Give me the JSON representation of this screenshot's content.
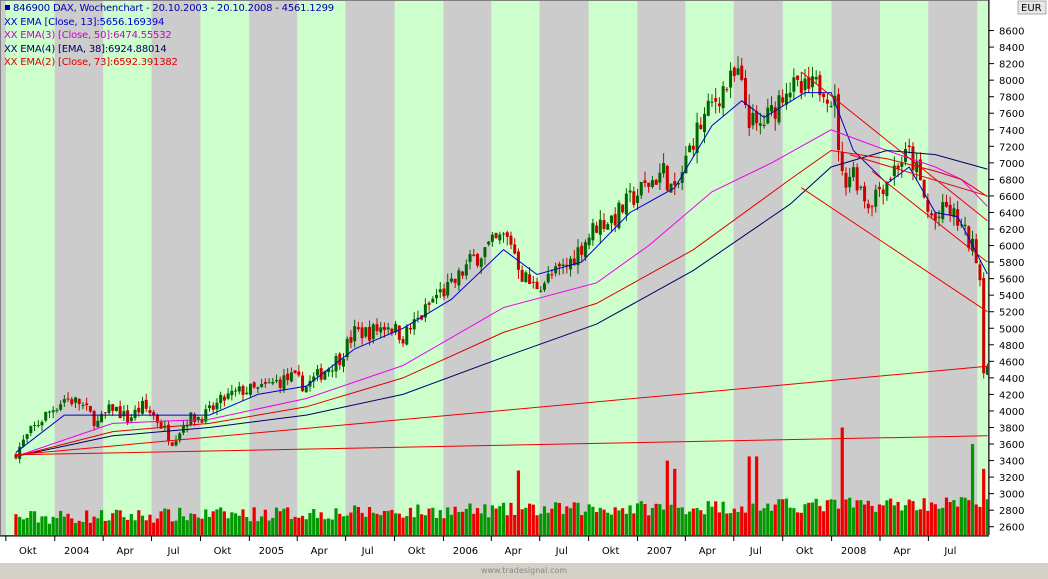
{
  "header": {
    "symbol_title": "846900  DAX, Wochenchart - 20.10.2003 - 20.10.2008 - 4561.1299",
    "currency": "EUR"
  },
  "indicators": [
    {
      "label": "XX EMA [Close, 13]:5656.169394",
      "color": "#0000cc"
    },
    {
      "label": "XX EMA(3) [Close, 50]:6474.55532",
      "color": "#cc00cc"
    },
    {
      "label": "XX EMA(4) [EMA, 38]:6924.88014",
      "color": "#000066"
    },
    {
      "label": "XX EMA(2) [Close, 73]:6592.391382",
      "color": "#dd0000"
    }
  ],
  "footer": "www.tradesignal.com",
  "colors": {
    "band_green": "#ccffcc",
    "band_gray": "#cccccc",
    "up": "#006600",
    "down": "#cc0000",
    "ema13": "#0000cc",
    "ema50": "#ee00ee",
    "ema_ema38": "#000066",
    "ema73": "#dd0000",
    "trendline": "#ee0000",
    "volume_up": "#009900",
    "volume_down": "#ee0000"
  },
  "chart_data": {
    "type": "candlestick",
    "title": "846900  DAX, Wochenchart - 20.10.2003 - 20.10.2008 - 4561.1299",
    "xlabel": "",
    "ylabel": "EUR",
    "xlim": [
      "2003-10-20",
      "2008-10-20"
    ],
    "ylim": [
      2500,
      8800
    ],
    "y_ticks": [
      2600,
      2800,
      3000,
      3200,
      3400,
      3600,
      3800,
      4000,
      4200,
      4400,
      4600,
      4800,
      5000,
      5200,
      5400,
      5600,
      5800,
      6000,
      6200,
      6400,
      6600,
      6800,
      7000,
      7200,
      7400,
      7600,
      7800,
      8000,
      8200,
      8400,
      8600
    ],
    "x_ticks": [
      {
        "date": "2003-10-01",
        "label": "Okt"
      },
      {
        "date": "2004-01-01",
        "label": "2004"
      },
      {
        "date": "2004-04-01",
        "label": "Apr"
      },
      {
        "date": "2004-07-01",
        "label": "Jul"
      },
      {
        "date": "2004-10-01",
        "label": "Okt"
      },
      {
        "date": "2005-01-01",
        "label": "2005"
      },
      {
        "date": "2005-04-01",
        "label": "Apr"
      },
      {
        "date": "2005-07-01",
        "label": "Jul"
      },
      {
        "date": "2005-10-01",
        "label": "Okt"
      },
      {
        "date": "2006-01-01",
        "label": "2006"
      },
      {
        "date": "2006-04-01",
        "label": "Apr"
      },
      {
        "date": "2006-07-01",
        "label": "Jul"
      },
      {
        "date": "2006-10-01",
        "label": "Okt"
      },
      {
        "date": "2007-01-01",
        "label": "2007"
      },
      {
        "date": "2007-04-01",
        "label": "Apr"
      },
      {
        "date": "2007-07-01",
        "label": "Jul"
      },
      {
        "date": "2007-10-01",
        "label": "Okt"
      },
      {
        "date": "2008-01-01",
        "label": "2008"
      },
      {
        "date": "2008-04-01",
        "label": "Apr"
      },
      {
        "date": "2008-07-01",
        "label": "Jul"
      }
    ],
    "close_path": [
      [
        "2003-10-20",
        3500
      ],
      [
        "2003-11-17",
        3750
      ],
      [
        "2003-12-15",
        3950
      ],
      [
        "2004-01-19",
        4150
      ],
      [
        "2004-02-16",
        4100
      ],
      [
        "2004-03-22",
        3850
      ],
      [
        "2004-04-19",
        4050
      ],
      [
        "2004-05-17",
        3900
      ],
      [
        "2004-06-14",
        4050
      ],
      [
        "2004-07-05",
        3950
      ],
      [
        "2004-08-09",
        3650
      ],
      [
        "2004-09-06",
        3900
      ],
      [
        "2004-10-11",
        3950
      ],
      [
        "2004-11-15",
        4150
      ],
      [
        "2004-12-20",
        4250
      ],
      [
        "2005-01-17",
        4250
      ],
      [
        "2005-02-21",
        4350
      ],
      [
        "2005-03-21",
        4400
      ],
      [
        "2005-04-18",
        4300
      ],
      [
        "2005-05-23",
        4500
      ],
      [
        "2005-06-20",
        4650
      ],
      [
        "2005-07-18",
        4950
      ],
      [
        "2005-08-15",
        4950
      ],
      [
        "2005-09-19",
        5050
      ],
      [
        "2005-10-17",
        4900
      ],
      [
        "2005-11-21",
        5150
      ],
      [
        "2005-12-19",
        5400
      ],
      [
        "2006-01-16",
        5500
      ],
      [
        "2006-02-20",
        5800
      ],
      [
        "2006-03-20",
        5950
      ],
      [
        "2006-04-24",
        6100
      ],
      [
        "2006-05-08",
        6050
      ],
      [
        "2006-05-29",
        5650
      ],
      [
        "2006-06-19",
        5500
      ],
      [
        "2006-07-17",
        5600
      ],
      [
        "2006-08-21",
        5750
      ],
      [
        "2006-09-18",
        6000
      ],
      [
        "2006-10-16",
        6250
      ],
      [
        "2006-11-20",
        6350
      ],
      [
        "2006-12-18",
        6550
      ],
      [
        "2007-01-22",
        6750
      ],
      [
        "2007-02-19",
        6900
      ],
      [
        "2007-03-12",
        6600
      ],
      [
        "2007-04-16",
        7300
      ],
      [
        "2007-05-21",
        7700
      ],
      [
        "2007-06-11",
        7900
      ],
      [
        "2007-07-09",
        8050
      ],
      [
        "2007-07-30",
        7550
      ],
      [
        "2007-08-13",
        7400
      ],
      [
        "2007-09-10",
        7600
      ],
      [
        "2007-10-08",
        7950
      ],
      [
        "2007-11-05",
        7850
      ],
      [
        "2007-11-26",
        7900
      ],
      [
        "2007-12-17",
        7950
      ],
      [
        "2008-01-07",
        7700
      ],
      [
        "2008-01-21",
        6800
      ],
      [
        "2008-02-11",
        6900
      ],
      [
        "2008-03-10",
        6500
      ],
      [
        "2008-03-24",
        6650
      ],
      [
        "2008-04-14",
        6800
      ],
      [
        "2008-05-05",
        7000
      ],
      [
        "2008-05-26",
        7100
      ],
      [
        "2008-06-09",
        6900
      ],
      [
        "2008-06-30",
        6400
      ],
      [
        "2008-07-14",
        6300
      ],
      [
        "2008-08-04",
        6450
      ],
      [
        "2008-08-25",
        6300
      ],
      [
        "2008-09-15",
        6050
      ],
      [
        "2008-09-29",
        5900
      ],
      [
        "2008-10-06",
        5600
      ],
      [
        "2008-10-13",
        4550
      ],
      [
        "2008-10-20",
        4561
      ]
    ],
    "series": [
      {
        "name": "XX EMA [Close, 13]",
        "last": 5656.169394,
        "points": [
          [
            "2003-10-20",
            3500
          ],
          [
            "2004-01-19",
            3950
          ],
          [
            "2004-04-19",
            3950
          ],
          [
            "2004-07-19",
            3950
          ],
          [
            "2004-10-18",
            3950
          ],
          [
            "2005-01-17",
            4200
          ],
          [
            "2005-04-18",
            4300
          ],
          [
            "2005-07-18",
            4750
          ],
          [
            "2005-10-17",
            5000
          ],
          [
            "2006-01-16",
            5350
          ],
          [
            "2006-04-24",
            5950
          ],
          [
            "2006-06-26",
            5650
          ],
          [
            "2006-09-18",
            5800
          ],
          [
            "2006-12-18",
            6400
          ],
          [
            "2007-03-12",
            6700
          ],
          [
            "2007-05-21",
            7450
          ],
          [
            "2007-07-16",
            7750
          ],
          [
            "2007-08-27",
            7550
          ],
          [
            "2007-11-12",
            7850
          ],
          [
            "2007-12-31",
            7850
          ],
          [
            "2008-02-11",
            7150
          ],
          [
            "2008-04-14",
            6750
          ],
          [
            "2008-05-26",
            6950
          ],
          [
            "2008-07-14",
            6400
          ],
          [
            "2008-08-25",
            6350
          ],
          [
            "2008-10-20",
            5656
          ]
        ]
      },
      {
        "name": "XX EMA(3) [Close, 50]",
        "last": 6474.55532,
        "points": [
          [
            "2003-10-20",
            3450
          ],
          [
            "2004-04-19",
            3850
          ],
          [
            "2004-10-18",
            3900
          ],
          [
            "2005-04-18",
            4150
          ],
          [
            "2005-10-17",
            4550
          ],
          [
            "2006-04-24",
            5250
          ],
          [
            "2006-10-16",
            5550
          ],
          [
            "2007-01-22",
            6000
          ],
          [
            "2007-05-21",
            6650
          ],
          [
            "2007-09-10",
            7000
          ],
          [
            "2007-12-31",
            7400
          ],
          [
            "2008-04-14",
            7150
          ],
          [
            "2008-07-14",
            6950
          ],
          [
            "2008-09-01",
            6800
          ],
          [
            "2008-10-20",
            6475
          ]
        ]
      },
      {
        "name": "XX EMA(4) [EMA, 38]",
        "last": 6924.88014,
        "points": [
          [
            "2003-10-20",
            3450
          ],
          [
            "2004-04-19",
            3700
          ],
          [
            "2004-10-18",
            3800
          ],
          [
            "2005-04-18",
            3950
          ],
          [
            "2005-10-17",
            4200
          ],
          [
            "2006-04-24",
            4650
          ],
          [
            "2006-10-16",
            5050
          ],
          [
            "2007-04-16",
            5700
          ],
          [
            "2007-10-15",
            6500
          ],
          [
            "2007-12-31",
            6950
          ],
          [
            "2008-04-14",
            7150
          ],
          [
            "2008-07-14",
            7100
          ],
          [
            "2008-10-20",
            6925
          ]
        ]
      },
      {
        "name": "XX EMA(2) [Close, 73]",
        "last": 6592.391382,
        "points": [
          [
            "2003-10-20",
            3450
          ],
          [
            "2004-04-19",
            3750
          ],
          [
            "2004-10-18",
            3850
          ],
          [
            "2005-04-18",
            4050
          ],
          [
            "2005-10-17",
            4400
          ],
          [
            "2006-04-24",
            4950
          ],
          [
            "2006-10-16",
            5300
          ],
          [
            "2007-04-16",
            5950
          ],
          [
            "2007-10-15",
            6800
          ],
          [
            "2007-12-31",
            7150
          ],
          [
            "2008-04-14",
            7050
          ],
          [
            "2008-07-14",
            6900
          ],
          [
            "2008-09-01",
            6800
          ],
          [
            "2008-10-20",
            6592
          ]
        ]
      }
    ],
    "trendlines": [
      {
        "from": [
          "2003-10-20",
          3470
        ],
        "to": [
          "2008-10-20",
          4540
        ]
      },
      {
        "from": [
          "2003-10-20",
          3470
        ],
        "to": [
          "2008-10-20",
          3700
        ]
      },
      {
        "from": [
          "2007-11-05",
          8100
        ],
        "to": [
          "2008-10-20",
          6300
        ]
      },
      {
        "from": [
          "2007-11-05",
          6700
        ],
        "to": [
          "2008-10-20",
          5200
        ]
      },
      {
        "from": [
          "2008-03-17",
          6900
        ],
        "to": [
          "2008-10-20",
          5800
        ]
      },
      {
        "from": [
          "2008-02-04",
          7100
        ],
        "to": [
          "2008-10-20",
          6600
        ]
      }
    ],
    "volume": {
      "baseline": 2500,
      "range": [
        2500,
        3900
      ],
      "spikes": [
        {
          "date": "2006-05-22",
          "value": 3280
        },
        {
          "date": "2007-02-26",
          "value": 3400
        },
        {
          "date": "2007-03-12",
          "value": 3300
        },
        {
          "date": "2007-07-30",
          "value": 3450
        },
        {
          "date": "2007-08-13",
          "value": 3450
        },
        {
          "date": "2008-01-21",
          "value": 3800
        },
        {
          "date": "2008-09-22",
          "value": 3600
        },
        {
          "date": "2008-10-13",
          "value": 3300
        }
      ]
    }
  }
}
